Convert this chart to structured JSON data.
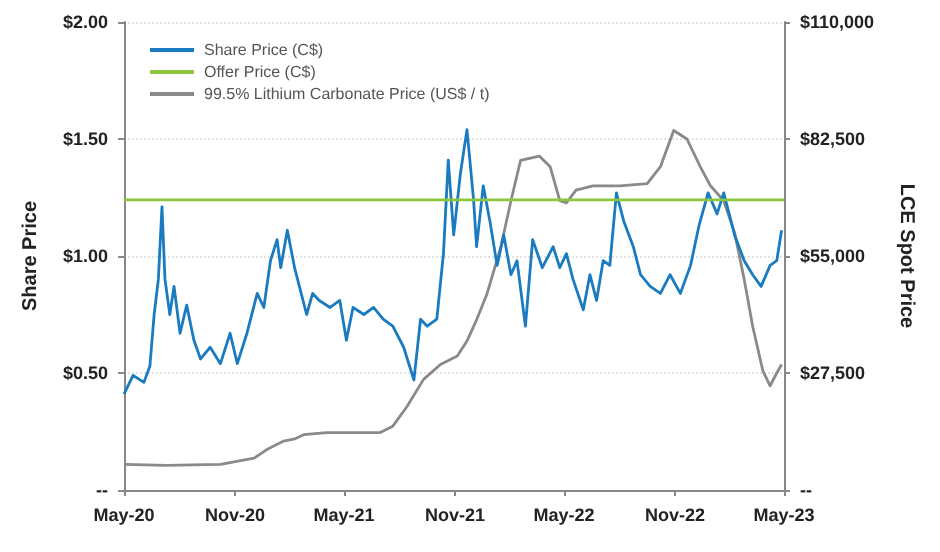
{
  "chart_data": {
    "type": "line",
    "ylabel": "Share Price",
    "y2label": "LCE Spot Price",
    "legend": "top left",
    "grid": "y",
    "marker": "none",
    "xlim": [
      "2020-05",
      "2023-05"
    ],
    "xticks": [
      {
        "value": "2020-05",
        "label": "May-20"
      },
      {
        "value": "2020-11",
        "label": "Nov-20"
      },
      {
        "value": "2021-05",
        "label": "May-21"
      },
      {
        "value": "2021-11",
        "label": "Nov-21"
      },
      {
        "value": "2022-05",
        "label": "May-22"
      },
      {
        "value": "2022-11",
        "label": "Nov-22"
      },
      {
        "value": "2023-05",
        "label": "May-23"
      }
    ],
    "ylim": [
      0,
      2
    ],
    "yticks": [
      {
        "value": 0,
        "label": "--"
      },
      {
        "value": 0.5,
        "label": "$0.50"
      },
      {
        "value": 1,
        "label": "$1.00"
      },
      {
        "value": 1.5,
        "label": "$1.50"
      },
      {
        "value": 2,
        "label": "$2.00"
      }
    ],
    "y2lim": [
      0,
      110000
    ],
    "y2ticks": [
      {
        "value": 0,
        "label": "--"
      },
      {
        "value": 27500,
        "label": "$27,500"
      },
      {
        "value": 55000,
        "label": "$55,000"
      },
      {
        "value": 82500,
        "label": "$82,500"
      },
      {
        "value": 110000,
        "label": "$110,000"
      }
    ],
    "series": [
      {
        "name": "Share Price (C$)",
        "color": "#1a7bc0",
        "x": [
          "2020-05-01",
          "2020-05-16",
          "2020-06-03",
          "2020-06-13",
          "2020-06-20",
          "2020-06-27",
          "2020-07-03",
          "2020-07-08",
          "2020-07-16",
          "2020-07-23",
          "2020-08-02",
          "2020-08-13",
          "2020-08-25",
          "2020-09-05",
          "2020-09-21",
          "2020-10-08",
          "2020-10-24",
          "2020-11-05",
          "2020-11-21",
          "2020-12-08",
          "2020-12-19",
          "2020-12-30",
          "2021-01-10",
          "2021-01-16",
          "2021-01-27",
          "2021-02-08",
          "2021-02-16",
          "2021-02-28",
          "2021-03-10",
          "2021-03-21",
          "2021-04-08",
          "2021-04-24",
          "2021-05-05",
          "2021-05-16",
          "2021-06-03",
          "2021-06-19",
          "2021-07-05",
          "2021-07-21",
          "2021-08-08",
          "2021-08-25",
          "2021-09-05",
          "2021-09-16",
          "2021-10-02",
          "2021-10-13",
          "2021-10-21",
          "2021-10-30",
          "2021-11-10",
          "2021-11-21",
          "2021-12-02",
          "2021-12-07",
          "2021-12-18",
          "2021-12-29",
          "2022-01-10",
          "2022-01-21",
          "2022-02-02",
          "2022-02-12",
          "2022-02-26",
          "2022-03-10",
          "2022-03-26",
          "2022-04-13",
          "2022-04-24",
          "2022-05-05",
          "2022-05-16",
          "2022-06-02",
          "2022-06-13",
          "2022-06-24",
          "2022-07-05",
          "2022-07-16",
          "2022-07-27",
          "2022-08-08",
          "2022-08-24",
          "2022-09-05",
          "2022-09-21",
          "2022-10-08",
          "2022-10-24",
          "2022-11-10",
          "2022-11-27",
          "2022-12-11",
          "2022-12-26",
          "2023-01-10",
          "2023-01-21",
          "2023-02-08",
          "2023-02-24",
          "2023-03-10",
          "2023-03-24",
          "2023-04-08",
          "2023-04-19",
          "2023-04-27"
        ],
        "values": [
          0.41,
          0.49,
          0.46,
          0.53,
          0.75,
          0.9,
          1.21,
          0.9,
          0.75,
          0.87,
          0.67,
          0.79,
          0.64,
          0.56,
          0.61,
          0.54,
          0.67,
          0.54,
          0.67,
          0.84,
          0.78,
          0.98,
          1.07,
          0.95,
          1.11,
          0.95,
          0.87,
          0.75,
          0.84,
          0.81,
          0.78,
          0.81,
          0.64,
          0.78,
          0.75,
          0.78,
          0.73,
          0.7,
          0.61,
          0.47,
          0.73,
          0.7,
          0.73,
          1.01,
          1.41,
          1.09,
          1.35,
          1.54,
          1.24,
          1.04,
          1.3,
          1.15,
          0.96,
          1.09,
          0.92,
          0.98,
          0.7,
          1.07,
          0.95,
          1.04,
          0.95,
          1.01,
          0.9,
          0.77,
          0.92,
          0.81,
          0.98,
          0.96,
          1.27,
          1.15,
          1.04,
          0.92,
          0.87,
          0.84,
          0.92,
          0.84,
          0.96,
          1.13,
          1.27,
          1.18,
          1.27,
          1.09,
          0.98,
          0.92,
          0.87,
          0.96,
          0.98,
          1.11
        ]
      },
      {
        "name": "Offer Price (C$)",
        "color": "#8cc63f",
        "x": [
          "2020-05",
          "2023-05"
        ],
        "values": [
          1.24,
          1.24
        ]
      },
      {
        "name": "99.5% Lithium Carbonate Price (US$ / t)",
        "color": "#8a8a8a",
        "axis": "y2",
        "x": [
          "2020-05-01",
          "2020-07-10",
          "2020-10-08",
          "2020-12-03",
          "2020-12-24",
          "2021-01-21",
          "2021-02-08",
          "2021-02-23",
          "2021-04-02",
          "2021-06-30",
          "2021-07-21",
          "2021-08-13",
          "2021-09-10",
          "2021-10-08",
          "2021-11-05",
          "2021-11-21",
          "2021-12-07",
          "2021-12-24",
          "2022-01-16",
          "2022-02-02",
          "2022-02-18",
          "2022-03-21",
          "2022-04-08",
          "2022-04-24",
          "2022-05-05",
          "2022-05-21",
          "2022-06-18",
          "2022-08-02",
          "2022-09-16",
          "2022-10-08",
          "2022-10-30",
          "2022-11-21",
          "2022-12-13",
          "2022-12-30",
          "2023-01-21",
          "2023-02-08",
          "2023-02-24",
          "2023-03-10",
          "2023-03-27",
          "2023-04-08",
          "2023-04-19",
          "2023-04-27"
        ],
        "values": [
          6000,
          5800,
          6000,
          7500,
          9500,
          11500,
          12000,
          13000,
          13500,
          13500,
          15000,
          19500,
          26000,
          29500,
          31500,
          35000,
          40000,
          46000,
          57000,
          68000,
          77500,
          78500,
          76000,
          68000,
          67500,
          70500,
          71500,
          71500,
          72000,
          76000,
          84500,
          82500,
          76000,
          71500,
          68000,
          60500,
          49500,
          38500,
          28000,
          24500,
          27500,
          29500
        ]
      }
    ]
  }
}
